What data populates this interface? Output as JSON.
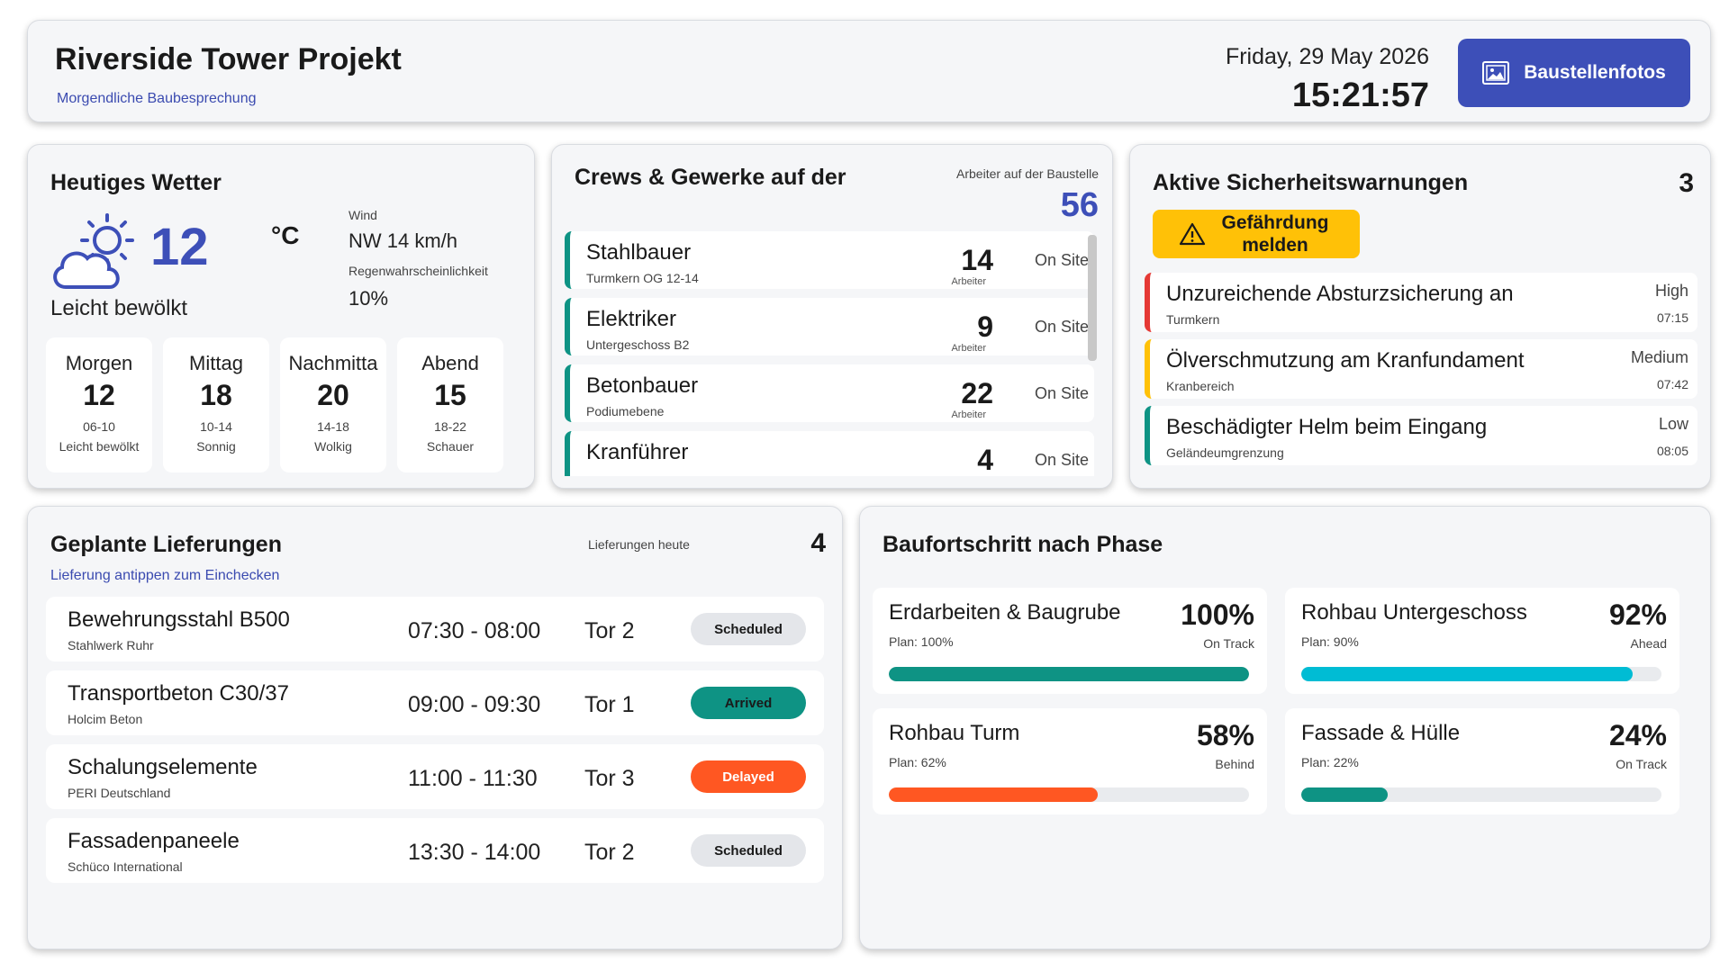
{
  "header": {
    "title": "Riverside Tower Projekt",
    "subtitle": "Morgendliche Baubesprechung",
    "date": "Friday, 29 May 2026",
    "time": "15:21:57",
    "photos_button": "Baustellenfotos",
    "photos_icon": "photo-icon"
  },
  "weather": {
    "title": "Heutiges Wetter",
    "icon": "partly-cloudy-icon",
    "temperature": "12",
    "unit": "°C",
    "condition": "Leicht bewölkt",
    "wind_label": "Wind",
    "wind_value": "NW 14 km/h",
    "rain_label": "Regenwahrscheinlichkeit",
    "rain_value": "10%",
    "slots": [
      {
        "name": "Morgen",
        "temp": "12",
        "range": "06-10",
        "cond": "Leicht bewölkt"
      },
      {
        "name": "Mittag",
        "temp": "18",
        "range": "10-14",
        "cond": "Sonnig"
      },
      {
        "name": "Nachmitta",
        "temp": "20",
        "range": "14-18",
        "cond": "Wolkig"
      },
      {
        "name": "Abend",
        "temp": "15",
        "range": "18-22",
        "cond": "Schauer"
      }
    ]
  },
  "crews": {
    "title": "Crews & Gewerke auf der",
    "workers_label": "Arbeiter auf der Baustelle",
    "workers_count": "56",
    "count_label": "Arbeiter",
    "items": [
      {
        "name": "Stahlbauer",
        "location": "Turmkern OG 12-14",
        "count": "14",
        "status": "On Site"
      },
      {
        "name": "Elektriker",
        "location": "Untergeschoss B2",
        "count": "9",
        "status": "On Site"
      },
      {
        "name": "Betonbauer",
        "location": "Podiumebene",
        "count": "22",
        "status": "On Site"
      },
      {
        "name": "Kranführer",
        "location": "",
        "count": "4",
        "status": "On Site"
      }
    ]
  },
  "safety": {
    "title": "Aktive Sicherheitswarnungen",
    "count": "3",
    "report_button": "Gefährdung melden",
    "report_icon": "warning-icon",
    "items": [
      {
        "title": "Unzureichende Absturzsicherung an",
        "location": "Turmkern",
        "severity": "High",
        "time": "07:15",
        "color": "#e53935"
      },
      {
        "title": "Ölverschmutzung am Kranfundament",
        "location": "Kranbereich",
        "severity": "Medium",
        "time": "07:42",
        "color": "#ffc107"
      },
      {
        "title": "Beschädigter Helm beim Eingang",
        "location": "Geländeumgrenzung",
        "severity": "Low",
        "time": "08:05",
        "color": "#0e9384"
      }
    ]
  },
  "deliveries": {
    "title": "Geplante Lieferungen",
    "hint": "Lieferung antippen zum Einchecken",
    "count_label": "Lieferungen heute",
    "count": "4",
    "items": [
      {
        "name": "Bewehrungsstahl B500",
        "supplier": "Stahlwerk Ruhr",
        "time": "07:30 - 08:00",
        "gate": "Tor 2",
        "status": "Scheduled",
        "bg": "#e4e6ea",
        "fg": "#1a1a1a"
      },
      {
        "name": "Transportbeton C30/37",
        "supplier": "Holcim Beton",
        "time": "09:00 - 09:30",
        "gate": "Tor 1",
        "status": "Arrived",
        "bg": "#0e9384",
        "fg": "#1a1a1a"
      },
      {
        "name": "Schalungselemente",
        "supplier": "PERI Deutschland",
        "time": "11:00 - 11:30",
        "gate": "Tor 3",
        "status": "Delayed",
        "bg": "#ff5722",
        "fg": "#ffffff"
      },
      {
        "name": "Fassadenpaneele",
        "supplier": "Schüco International",
        "time": "13:30 - 14:00",
        "gate": "Tor 2",
        "status": "Scheduled",
        "bg": "#e4e6ea",
        "fg": "#1a1a1a"
      }
    ]
  },
  "progress": {
    "title": "Baufortschritt nach Phase",
    "phases": [
      {
        "name": "Erdarbeiten & Baugrube",
        "plan": "Plan: 100%",
        "percent": "100%",
        "value": 100,
        "status": "On Track",
        "color": "#0e9384"
      },
      {
        "name": "Rohbau Untergeschoss",
        "plan": "Plan: 90%",
        "percent": "92%",
        "value": 92,
        "status": "Ahead",
        "color": "#00bcd4"
      },
      {
        "name": "Rohbau Turm",
        "plan": "Plan: 62%",
        "percent": "58%",
        "value": 58,
        "status": "Behind",
        "color": "#ff5722"
      },
      {
        "name": "Fassade & Hülle",
        "plan": "Plan: 22%",
        "percent": "24%",
        "value": 24,
        "status": "On Track",
        "color": "#0e9384"
      }
    ]
  }
}
